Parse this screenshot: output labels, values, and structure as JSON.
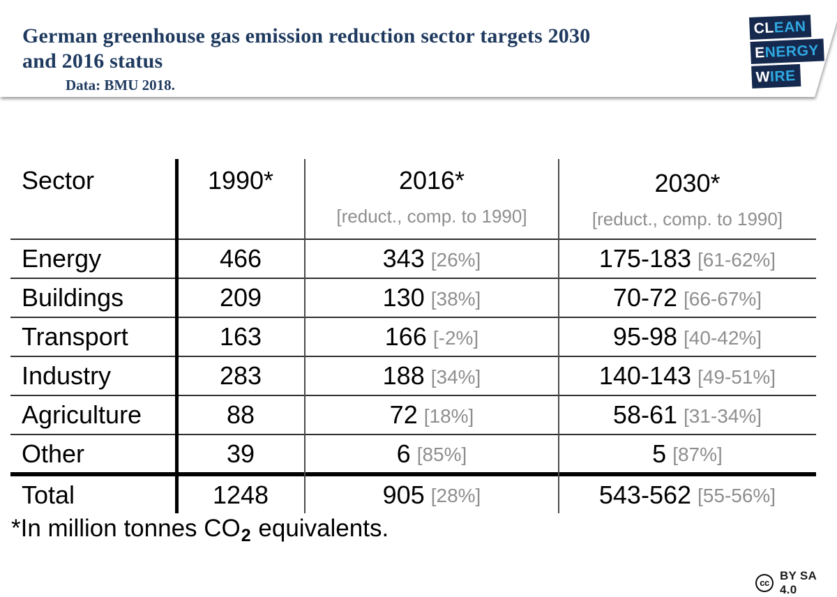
{
  "header": {
    "title_lines": [
      "German greenhouse gas emission reduction sector targets 2030",
      "and 2016 status"
    ],
    "subtitle": "Data: BMU 2018.",
    "logo": {
      "navy": "#15294E",
      "cyan": "#2FA9E1",
      "lines": [
        {
          "white": "CL",
          "blue": "EAN"
        },
        {
          "white": "E",
          "blue": "NERGY"
        },
        {
          "white": "W",
          "blue": "IRE"
        }
      ]
    }
  },
  "table": {
    "columns": [
      {
        "label": "Sector",
        "sub": ""
      },
      {
        "label": "1990*",
        "sub": ""
      },
      {
        "label": "2016*",
        "sub": "[reduct., comp. to 1990]"
      },
      {
        "label": "2030*",
        "sub": "[reduct., comp. to 1990]"
      }
    ],
    "rows": [
      {
        "sector": "Energy",
        "v1990": "466",
        "v2016": "343",
        "p2016": "[26%]",
        "v2030": "175-183",
        "p2030": "[61-62%]"
      },
      {
        "sector": "Buildings",
        "v1990": "209",
        "v2016": "130",
        "p2016": "[38%]",
        "v2030": "70-72",
        "p2030": "[66-67%]"
      },
      {
        "sector": "Transport",
        "v1990": "163",
        "v2016": "166",
        "p2016": "[-2%]",
        "v2030": "95-98",
        "p2030": "[40-42%]"
      },
      {
        "sector": "Industry",
        "v1990": "283",
        "v2016": "188",
        "p2016": "[34%]",
        "v2030": "140-143",
        "p2030": "[49-51%]"
      },
      {
        "sector": "Agriculture",
        "v1990": "88",
        "v2016": "72",
        "p2016": "[18%]",
        "v2030": "58-61",
        "p2030": "[31-34%]"
      },
      {
        "sector": "Other",
        "v1990": "39",
        "v2016": "6",
        "p2016": "[85%]",
        "v2030": "5",
        "p2030": "[87%]"
      },
      {
        "sector": "Total",
        "v1990": "1248",
        "v2016": "905",
        "p2016": "[28%]",
        "v2030": "543-562",
        "p2030": "[55-56%]"
      }
    ],
    "footnote_pre": "*In million tonnes CO",
    "footnote_sub": "2",
    "footnote_post": " equivalents."
  },
  "footer": {
    "cc": "cc",
    "license": "BY SA 4.0"
  },
  "colors": {
    "title_navy": "#1F3A5F",
    "bracket_gray": "#8e8e8e",
    "line_dark": "#2e2e2e",
    "thick_black": "#000000"
  },
  "chart_data": {
    "type": "table",
    "title": "German greenhouse gas emission reduction sector targets 2030 and 2016 status",
    "source": "Data: BMU 2018.",
    "unit_note": "*In million tonnes CO₂ equivalents.",
    "columns": [
      "Sector",
      "1990*",
      "2016* [reduct., comp. to 1990]",
      "2030* [reduct., comp. to 1990]"
    ],
    "rows": [
      [
        "Energy",
        "466",
        "343 [26%]",
        "175-183 [61-62%]"
      ],
      [
        "Buildings",
        "209",
        "130 [38%]",
        "70-72 [66-67%]"
      ],
      [
        "Transport",
        "163",
        "166 [-2%]",
        "95-98 [40-42%]"
      ],
      [
        "Industry",
        "283",
        "188 [34%]",
        "140-143 [49-51%]"
      ],
      [
        "Agriculture",
        "88",
        "72 [18%]",
        "58-61 [31-34%]"
      ],
      [
        "Other",
        "39",
        "6 [85%]",
        "5 [87%]"
      ],
      [
        "Total",
        "1248",
        "905 [28%]",
        "543-562 [55-56%]"
      ]
    ],
    "license": "CC BY SA 4.0"
  }
}
